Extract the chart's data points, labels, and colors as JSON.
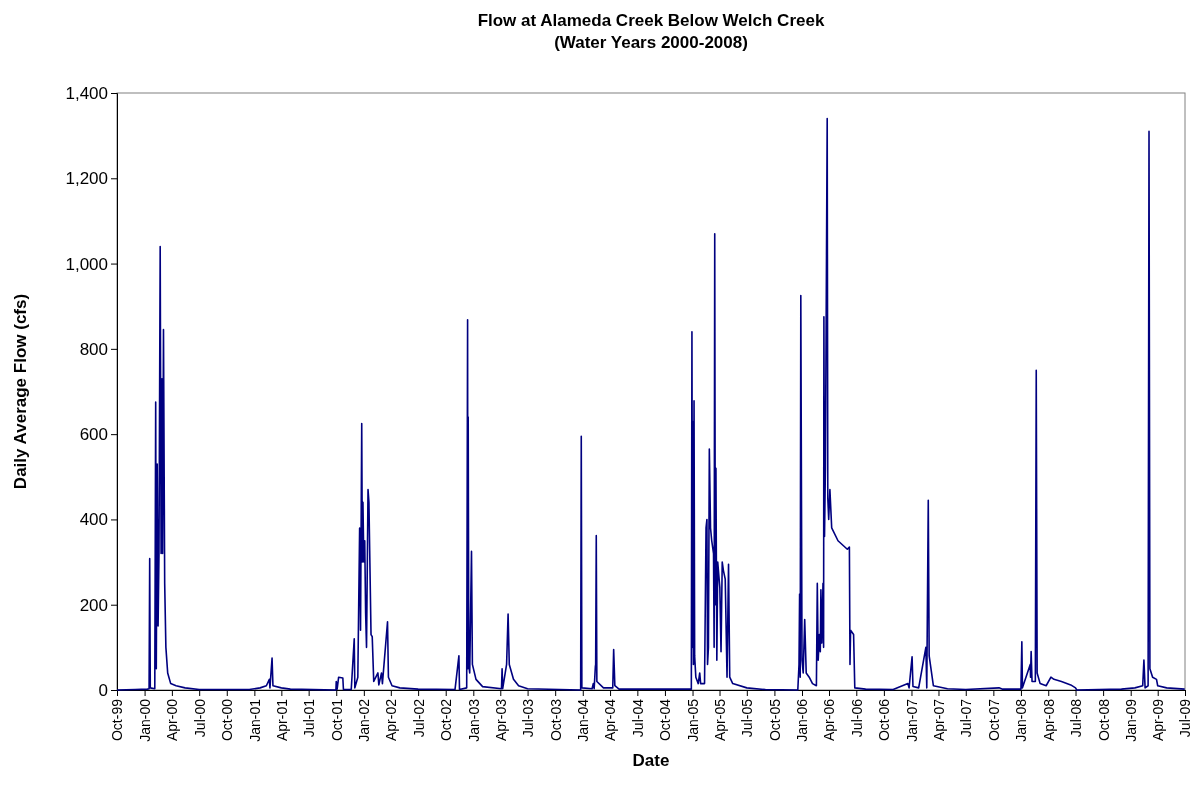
{
  "chart_data": {
    "type": "line",
    "title": "Flow at Alameda Creek Below Welch Creek",
    "subtitle": "(Water Years 2000-2008)",
    "xlabel": "Date",
    "ylabel": "Daily Average Flow (cfs)",
    "marker": "none",
    "line_style": "solid",
    "xlim": [
      "1999-10-01",
      "2009-07-01"
    ],
    "xticks": [
      {
        "value": "1999-10-01",
        "label": "Oct-99"
      },
      {
        "value": "2000-01-01",
        "label": "Jan-00"
      },
      {
        "value": "2000-04-01",
        "label": "Apr-00"
      },
      {
        "value": "2000-07-01",
        "label": "Jul-00"
      },
      {
        "value": "2000-10-01",
        "label": "Oct-00"
      },
      {
        "value": "2001-01-01",
        "label": "Jan-01"
      },
      {
        "value": "2001-04-01",
        "label": "Apr-01"
      },
      {
        "value": "2001-07-01",
        "label": "Jul-01"
      },
      {
        "value": "2001-10-01",
        "label": "Oct-01"
      },
      {
        "value": "2002-01-01",
        "label": "Jan-02"
      },
      {
        "value": "2002-04-01",
        "label": "Apr-02"
      },
      {
        "value": "2002-07-01",
        "label": "Jul-02"
      },
      {
        "value": "2002-10-01",
        "label": "Oct-02"
      },
      {
        "value": "2003-01-01",
        "label": "Jan-03"
      },
      {
        "value": "2003-04-01",
        "label": "Apr-03"
      },
      {
        "value": "2003-07-01",
        "label": "Jul-03"
      },
      {
        "value": "2003-10-01",
        "label": "Oct-03"
      },
      {
        "value": "2004-01-01",
        "label": "Jan-04"
      },
      {
        "value": "2004-04-01",
        "label": "Apr-04"
      },
      {
        "value": "2004-07-01",
        "label": "Jul-04"
      },
      {
        "value": "2004-10-01",
        "label": "Oct-04"
      },
      {
        "value": "2005-01-01",
        "label": "Jan-05"
      },
      {
        "value": "2005-04-01",
        "label": "Apr-05"
      },
      {
        "value": "2005-07-01",
        "label": "Jul-05"
      },
      {
        "value": "2005-10-01",
        "label": "Oct-05"
      },
      {
        "value": "2006-01-01",
        "label": "Jan-06"
      },
      {
        "value": "2006-04-01",
        "label": "Apr-06"
      },
      {
        "value": "2006-07-01",
        "label": "Jul-06"
      },
      {
        "value": "2006-10-01",
        "label": "Oct-06"
      },
      {
        "value": "2007-01-01",
        "label": "Jan-07"
      },
      {
        "value": "2007-04-01",
        "label": "Apr-07"
      },
      {
        "value": "2007-07-01",
        "label": "Jul-07"
      },
      {
        "value": "2007-10-01",
        "label": "Oct-07"
      },
      {
        "value": "2008-01-01",
        "label": "Jan-08"
      },
      {
        "value": "2008-04-01",
        "label": "Apr-08"
      },
      {
        "value": "2008-07-01",
        "label": "Jul-08"
      },
      {
        "value": "2008-10-01",
        "label": "Oct-08"
      },
      {
        "value": "2009-01-01",
        "label": "Jan-09"
      },
      {
        "value": "2009-04-01",
        "label": "Apr-09"
      },
      {
        "value": "2009-07-01",
        "label": "Jul-09"
      }
    ],
    "ylim": [
      0,
      1400
    ],
    "yticks": [
      0,
      200,
      400,
      600,
      800,
      {
        "value": 1000,
        "label": "1,000"
      },
      {
        "value": 1200,
        "label": "1,200"
      },
      {
        "value": 1400,
        "label": "1,400"
      }
    ],
    "series": [
      {
        "color": "#000080",
        "x": [
          "1999-10-01",
          "1999-12-01",
          "2000-01-10",
          "2000-01-16",
          "2000-01-18",
          "2000-01-20",
          "2000-02-04",
          "2000-02-07",
          "2000-02-09",
          "2000-02-12",
          "2000-02-15",
          "2000-02-18",
          "2000-02-22",
          "2000-02-25",
          "2000-02-28",
          "2000-03-01",
          "2000-03-04",
          "2000-03-08",
          "2000-03-12",
          "2000-03-18",
          "2000-03-28",
          "2000-04-15",
          "2000-05-15",
          "2000-07-01",
          "2000-12-15",
          "2001-01-20",
          "2001-02-10",
          "2001-02-20",
          "2001-02-22",
          "2001-03-01",
          "2001-03-04",
          "2001-04-01",
          "2001-05-01",
          "2001-09-30",
          "2001-10-01",
          "2001-10-04",
          "2001-10-09",
          "2001-10-23",
          "2001-10-25",
          "2001-11-20",
          "2001-11-30",
          "2001-12-02",
          "2001-12-12",
          "2001-12-18",
          "2001-12-21",
          "2001-12-25",
          "2001-12-27",
          "2001-12-29",
          "2002-01-01",
          "2002-01-04",
          "2002-01-07",
          "2002-01-10",
          "2002-01-15",
          "2002-01-18",
          "2002-01-25",
          "2002-01-29",
          "2002-02-03",
          "2002-02-17",
          "2002-02-20",
          "2002-03-01",
          "2002-03-04",
          "2002-03-21",
          "2002-03-24",
          "2002-04-05",
          "2002-05-01",
          "2002-07-01",
          "2002-11-01",
          "2002-11-14",
          "2002-11-16",
          "2002-12-10",
          "2002-12-13",
          "2002-12-14",
          "2002-12-15",
          "2002-12-17",
          "2002-12-20",
          "2002-12-26",
          "2002-12-29",
          "2003-01-10",
          "2003-02-01",
          "2003-04-05",
          "2003-04-07",
          "2003-04-09",
          "2003-04-22",
          "2003-04-27",
          "2003-05-01",
          "2003-05-15",
          "2003-06-01",
          "2003-07-01",
          "2003-12-25",
          "2003-12-27",
          "2003-12-29",
          "2004-02-01",
          "2004-02-05",
          "2004-02-08",
          "2004-02-12",
          "2004-02-13",
          "2004-02-15",
          "2004-02-17",
          "2004-03-10",
          "2004-04-10",
          "2004-04-13",
          "2004-04-17",
          "2004-05-01",
          "2004-12-28",
          "2004-12-30",
          "2005-01-01",
          "2005-01-02",
          "2005-01-04",
          "2005-01-06",
          "2005-01-08",
          "2005-01-12",
          "2005-01-20",
          "2005-01-25",
          "2005-01-28",
          "2005-02-10",
          "2005-02-15",
          "2005-02-18",
          "2005-02-20",
          "2005-02-23",
          "2005-02-26",
          "2005-03-02",
          "2005-03-06",
          "2005-03-12",
          "2005-03-14",
          "2005-03-16",
          "2005-03-18",
          "2005-03-20",
          "2005-03-23",
          "2005-03-26",
          "2005-04-02",
          "2005-04-06",
          "2005-04-10",
          "2005-04-14",
          "2005-04-20",
          "2005-04-26",
          "2005-05-01",
          "2005-05-05",
          "2005-05-15",
          "2005-07-01",
          "2005-09-01",
          "2005-12-18",
          "2005-12-22",
          "2005-12-24",
          "2005-12-26",
          "2005-12-28",
          "2006-01-01",
          "2006-01-05",
          "2006-01-10",
          "2006-01-15",
          "2006-01-25",
          "2006-02-05",
          "2006-02-18",
          "2006-02-21",
          "2006-02-24",
          "2006-02-28",
          "2006-03-03",
          "2006-03-05",
          "2006-03-08",
          "2006-03-12",
          "2006-03-14",
          "2006-03-15",
          "2006-03-17",
          "2006-03-20",
          "2006-03-26",
          "2006-03-28",
          "2006-03-31",
          "2006-04-04",
          "2006-04-10",
          "2006-05-01",
          "2006-06-01",
          "2006-06-08",
          "2006-06-10",
          "2006-06-12",
          "2006-06-22",
          "2006-06-26",
          "2006-08-01",
          "2006-11-01",
          "2006-12-20",
          "2006-12-24",
          "2007-01-03",
          "2007-01-06",
          "2007-01-25",
          "2007-02-18",
          "2007-02-21",
          "2007-02-26",
          "2007-03-01",
          "2007-03-15",
          "2007-05-01",
          "2007-07-01",
          "2007-10-20",
          "2007-11-01",
          "2008-01-01",
          "2008-01-04",
          "2008-01-06",
          "2008-02-01",
          "2008-02-02",
          "2008-02-04",
          "2008-02-07",
          "2008-02-18",
          "2008-02-21",
          "2008-02-24",
          "2008-03-05",
          "2008-03-25",
          "2008-04-10",
          "2008-04-20",
          "2008-05-15",
          "2008-06-15",
          "2008-07-01",
          "2008-07-05",
          "2008-12-01",
          "2009-01-15",
          "2009-02-10",
          "2009-02-14",
          "2009-02-18",
          "2009-02-28",
          "2009-03-03",
          "2009-03-06",
          "2009-03-15",
          "2009-03-28",
          "2009-04-01",
          "2009-05-01",
          "2009-06-30"
        ],
        "values": [
          0,
          1,
          2,
          3,
          308,
          5,
          3,
          675,
          50,
          530,
          150,
          320,
          1040,
          320,
          730,
          320,
          845,
          250,
          100,
          40,
          15,
          10,
          5,
          1,
          1,
          5,
          10,
          25,
          5,
          75,
          10,
          5,
          2,
          0,
          20,
          2,
          30,
          28,
          1,
          1,
          120,
          5,
          30,
          380,
          140,
          625,
          300,
          440,
          300,
          350,
          180,
          100,
          470,
          440,
          130,
          125,
          20,
          40,
          12,
          40,
          15,
          160,
          30,
          10,
          5,
          2,
          1,
          80,
          1,
          5,
          868,
          50,
          640,
          60,
          40,
          325,
          60,
          25,
          8,
          3,
          50,
          3,
          60,
          178,
          60,
          25,
          10,
          3,
          0,
          595,
          5,
          3,
          15,
          3,
          55,
          60,
          362,
          20,
          5,
          5,
          95,
          10,
          2,
          2,
          840,
          100,
          630,
          60,
          678,
          80,
          30,
          15,
          40,
          15,
          15,
          380,
          400,
          60,
          100,
          565,
          380,
          350,
          320,
          100,
          1070,
          200,
          520,
          70,
          300,
          240,
          90,
          300,
          280,
          260,
          30,
          295,
          30,
          15,
          5,
          1,
          0,
          60,
          225,
          30,
          925,
          70,
          40,
          165,
          40,
          30,
          15,
          10,
          250,
          70,
          130,
          90,
          235,
          110,
          250,
          100,
          875,
          360,
          520,
          1340,
          450,
          400,
          470,
          380,
          350,
          330,
          335,
          60,
          140,
          130,
          5,
          2,
          1,
          15,
          5,
          78,
          8,
          5,
          100,
          5,
          445,
          80,
          10,
          3,
          1,
          5,
          2,
          2,
          113,
          5,
          60,
          30,
          90,
          20,
          20,
          750,
          40,
          15,
          10,
          30,
          25,
          20,
          12,
          5,
          0,
          2,
          5,
          10,
          70,
          5,
          10,
          1310,
          50,
          30,
          25,
          10,
          5,
          2
        ]
      }
    ]
  }
}
